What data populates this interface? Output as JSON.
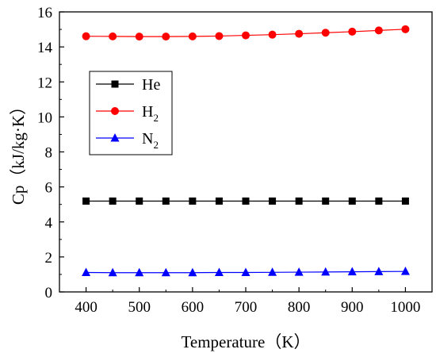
{
  "chart_data": {
    "type": "line",
    "xlabel": "Temperature（K）",
    "ylabel": "Cp（kJ/kg·K）",
    "xlim": [
      350,
      1050
    ],
    "ylim": [
      0,
      16
    ],
    "xticks": [
      "400",
      "500",
      "600",
      "700",
      "800",
      "900",
      "1000"
    ],
    "yticks": [
      "0",
      "2",
      "4",
      "6",
      "8",
      "10",
      "12",
      "14",
      "16"
    ],
    "x": [
      400,
      450,
      500,
      550,
      600,
      650,
      700,
      750,
      800,
      850,
      900,
      950,
      1000
    ],
    "series": [
      {
        "name": "He",
        "name_main": "He",
        "name_sub": "",
        "marker": "square",
        "color": "#000000",
        "values": [
          5.19,
          5.19,
          5.19,
          5.19,
          5.19,
          5.19,
          5.19,
          5.19,
          5.19,
          5.19,
          5.19,
          5.19,
          5.19
        ]
      },
      {
        "name": "H2",
        "name_main": "H",
        "name_sub": "2",
        "marker": "circle",
        "color": "#ff0000",
        "values": [
          14.61,
          14.6,
          14.59,
          14.59,
          14.6,
          14.62,
          14.66,
          14.7,
          14.75,
          14.81,
          14.87,
          14.94,
          15.01
        ]
      },
      {
        "name": "N2",
        "name_main": "N",
        "name_sub": "2",
        "marker": "triangle",
        "color": "#0000ff",
        "values": [
          1.11,
          1.1,
          1.1,
          1.1,
          1.1,
          1.11,
          1.11,
          1.12,
          1.13,
          1.14,
          1.15,
          1.16,
          1.17
        ]
      }
    ],
    "legend_position": "upper-left inside"
  }
}
